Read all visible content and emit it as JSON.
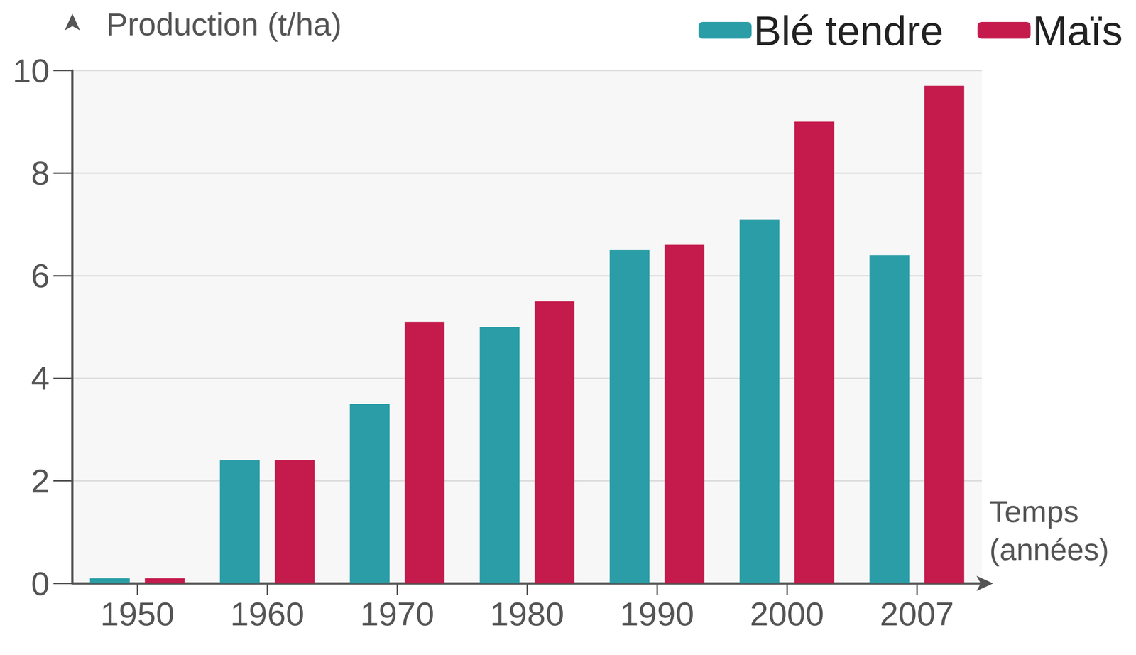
{
  "chart_data": {
    "type": "bar",
    "y_label": "Production (t/ha)",
    "x_label": "Temps\n(années)",
    "categories": [
      "1950",
      "1960",
      "1970",
      "1980",
      "1990",
      "2000",
      "2007"
    ],
    "series": [
      {
        "name": "Blé tendre",
        "color": "#2a9da6",
        "values": [
          0.1,
          2.4,
          3.5,
          5.0,
          6.5,
          7.1,
          6.4
        ]
      },
      {
        "name": "Maïs",
        "color": "#c41a4c",
        "values": [
          0.1,
          2.4,
          5.1,
          5.5,
          6.6,
          9.0,
          9.7
        ]
      }
    ],
    "ylim": [
      0,
      10
    ],
    "yticks": [
      0,
      2,
      4,
      6,
      8,
      10
    ],
    "grid": true,
    "legend": "top-right"
  }
}
